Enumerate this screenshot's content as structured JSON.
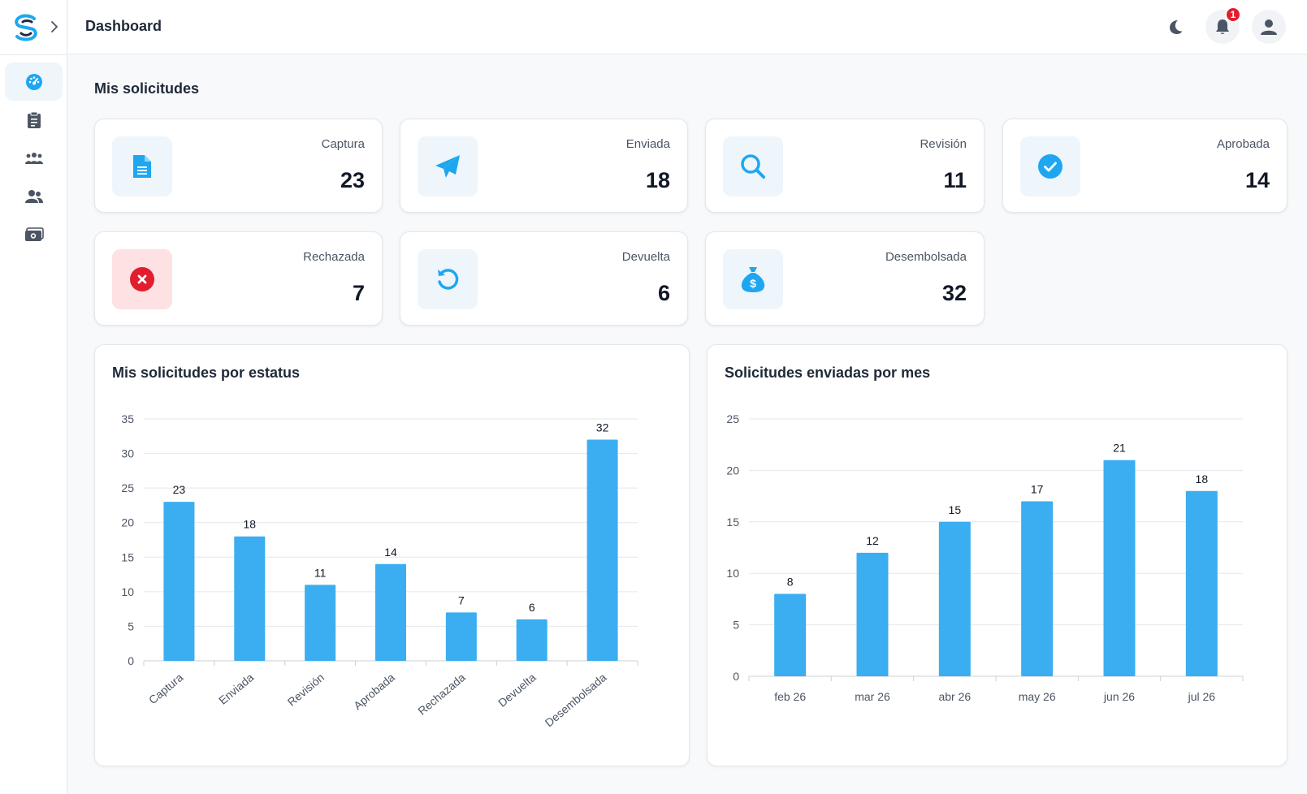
{
  "header": {
    "title": "Dashboard",
    "notifications_count": "1",
    "theme_icon": "moon-icon",
    "bell_icon": "bell-icon",
    "user_icon": "user-icon"
  },
  "sidebar": {
    "items": [
      {
        "icon": "dashboard-gauge-icon",
        "active": true
      },
      {
        "icon": "clipboard-icon",
        "active": false
      },
      {
        "icon": "group-icon",
        "active": false
      },
      {
        "icon": "users-icon",
        "active": false
      },
      {
        "icon": "money-icon",
        "active": false
      }
    ]
  },
  "main": {
    "section_title": "Mis solicitudes",
    "cards": [
      {
        "label": "Captura",
        "value": "23",
        "icon": "document-icon"
      },
      {
        "label": "Enviada",
        "value": "18",
        "icon": "paper-plane-icon"
      },
      {
        "label": "Revisión",
        "value": "11",
        "icon": "search-icon"
      },
      {
        "label": "Aprobada",
        "value": "14",
        "icon": "check-circle-icon"
      },
      {
        "label": "Rechazada",
        "value": "7",
        "icon": "x-circle-icon"
      },
      {
        "label": "Devuelta",
        "value": "6",
        "icon": "undo-icon"
      },
      {
        "label": "Desembolsada",
        "value": "32",
        "icon": "money-bag-icon"
      }
    ]
  },
  "colors": {
    "accent": "#1ea7f0",
    "bar": "#3aaef0",
    "danger": "#e11d2e"
  },
  "chart_data": [
    {
      "type": "bar",
      "title": "Mis solicitudes por estatus",
      "categories": [
        "Captura",
        "Enviada",
        "Revisión",
        "Aprobada",
        "Rechazada",
        "Devuelta",
        "Desembolsada"
      ],
      "values": [
        23,
        18,
        11,
        14,
        7,
        6,
        32
      ],
      "yticks": [
        0,
        5,
        10,
        15,
        20,
        25,
        30,
        35
      ],
      "ylim": [
        0,
        35
      ],
      "grid": true,
      "data_labels": true
    },
    {
      "type": "bar",
      "title": "Solicitudes enviadas por mes",
      "categories": [
        "feb 26",
        "mar 26",
        "abr 26",
        "may 26",
        "jun 26",
        "jul 26"
      ],
      "values": [
        8,
        12,
        15,
        17,
        21,
        18
      ],
      "yticks": [
        0,
        5,
        10,
        15,
        20,
        25
      ],
      "ylim": [
        0,
        25
      ],
      "grid": true,
      "data_labels": true
    }
  ]
}
